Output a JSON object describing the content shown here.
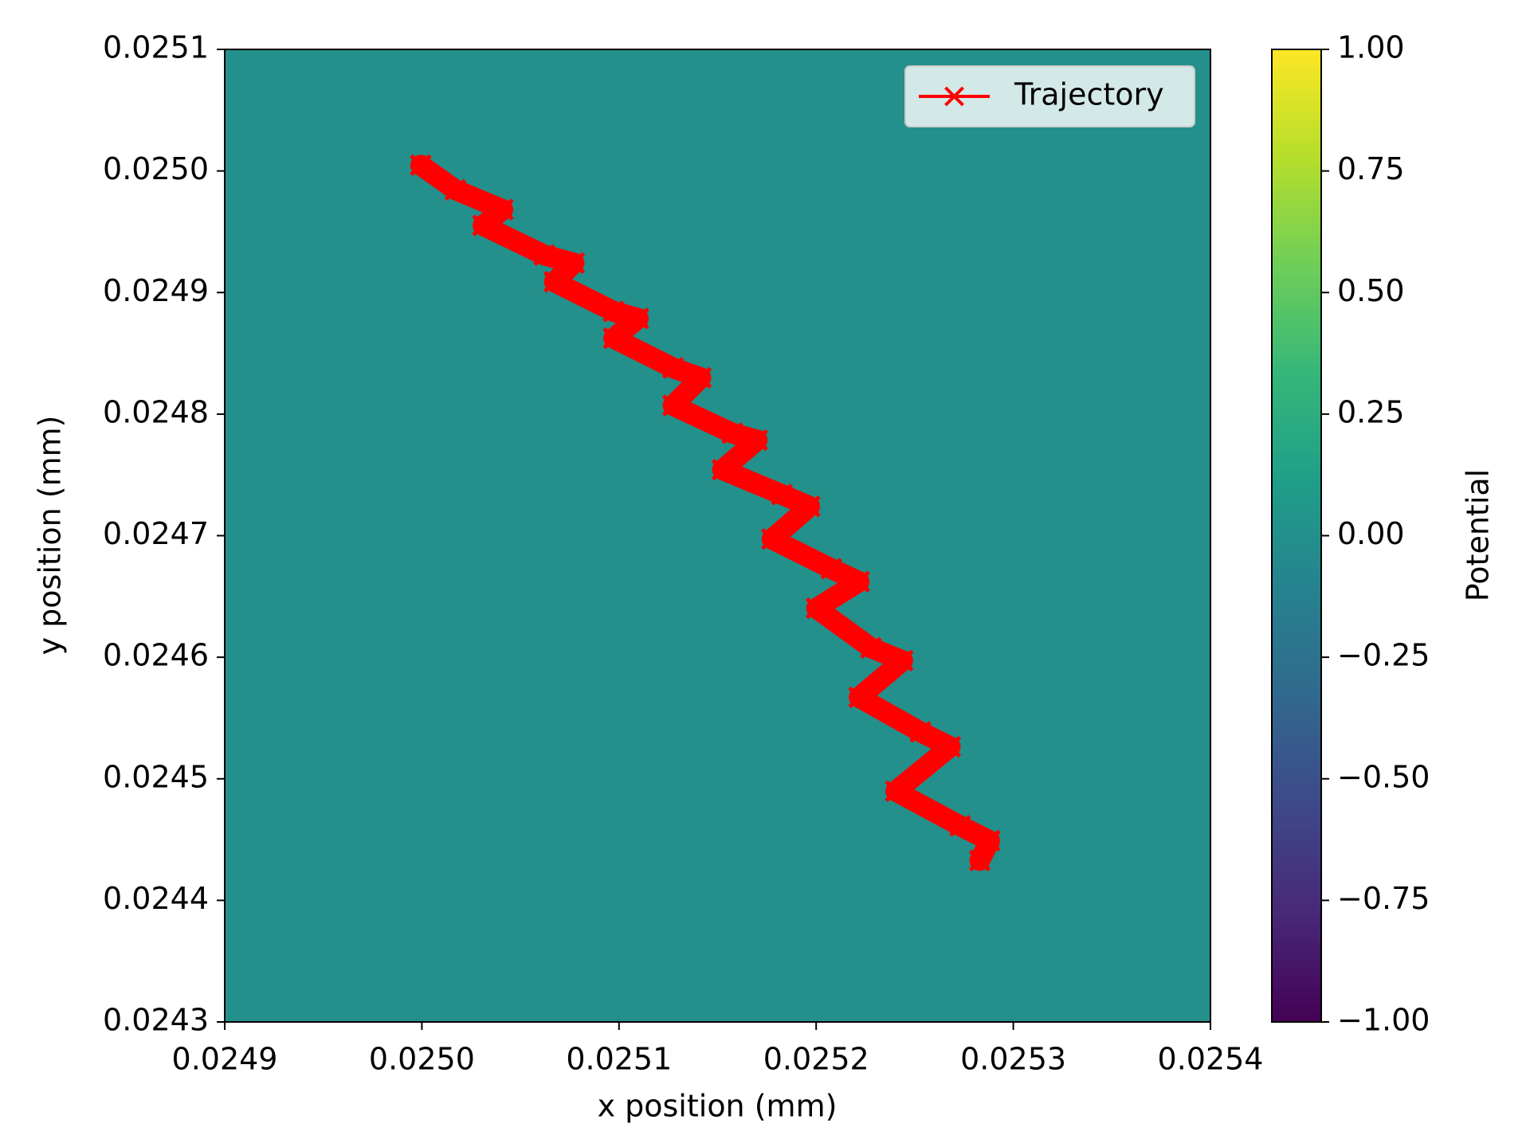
{
  "chart_data": {
    "type": "line",
    "xlabel": "x position (mm)",
    "ylabel": "y position (mm)",
    "xlim": [
      0.0249,
      0.0254
    ],
    "ylim": [
      0.0243,
      0.0251
    ],
    "xticks": [
      0.0249,
      {
        "value": 0.025,
        "label": "0.0250"
      },
      0.0251,
      0.0252,
      0.0253,
      0.0254
    ],
    "yticks": [
      0.0243,
      0.0244,
      0.0245,
      0.0246,
      0.0247,
      0.0248,
      0.0249,
      {
        "value": 0.025,
        "label": "0.0250"
      },
      0.0251
    ],
    "background_value": 0,
    "colormap": "viridis",
    "colorbar_label": "Potential",
    "clim": [
      -1,
      1
    ],
    "colorbar_ticks": [
      {
        "value": -1,
        "label": "−1.00"
      },
      {
        "value": -0.75,
        "label": "−0.75"
      },
      {
        "value": -0.5,
        "label": "−0.50"
      },
      {
        "value": -0.25,
        "label": "−0.25"
      },
      {
        "value": 0,
        "label": "0.00"
      },
      {
        "value": 0.25,
        "label": "0.25"
      },
      {
        "value": 0.5,
        "label": "0.50"
      },
      {
        "value": 0.75,
        "label": "0.75"
      },
      {
        "value": 1,
        "label": "1.00"
      }
    ],
    "legend_position": "upper right",
    "series": [
      {
        "name": "Trajectory",
        "color": "#ff0000",
        "marker": "x",
        "x": [
          0.0249994,
          0.025017,
          0.0250411,
          0.025031,
          0.0250621,
          0.0250772,
          0.0250672,
          0.0250973,
          0.0251098,
          0.0250973,
          0.0251274,
          0.0251415,
          0.0251274,
          0.0251575,
          0.0251701,
          0.0251525,
          0.0251826,
          0.0251967,
          0.0251776,
          0.0252077,
          0.0252218,
          0.0252002,
          0.0252278,
          0.0252439,
          0.0252218,
          0.0252529,
          0.025268,
          0.0252404,
          0.025273,
          0.025288,
          0.025283
        ],
        "values": [
          0.0250048,
          0.0249845,
          0.0249682,
          0.0249552,
          0.0249308,
          0.0249242,
          0.0249088,
          0.0248844,
          0.0248787,
          0.0248624,
          0.024838,
          0.0248299,
          0.0248071,
          0.0247843,
          0.0247786,
          0.0247542,
          0.0247338,
          0.0247241,
          0.0246972,
          0.0246728,
          0.0246622,
          0.0246403,
          0.0246077,
          0.0245972,
          0.024567,
          0.0245386,
          0.0245264,
          0.0244898,
          0.0244613,
          0.0244491,
          0.0244328
        ]
      }
    ]
  }
}
